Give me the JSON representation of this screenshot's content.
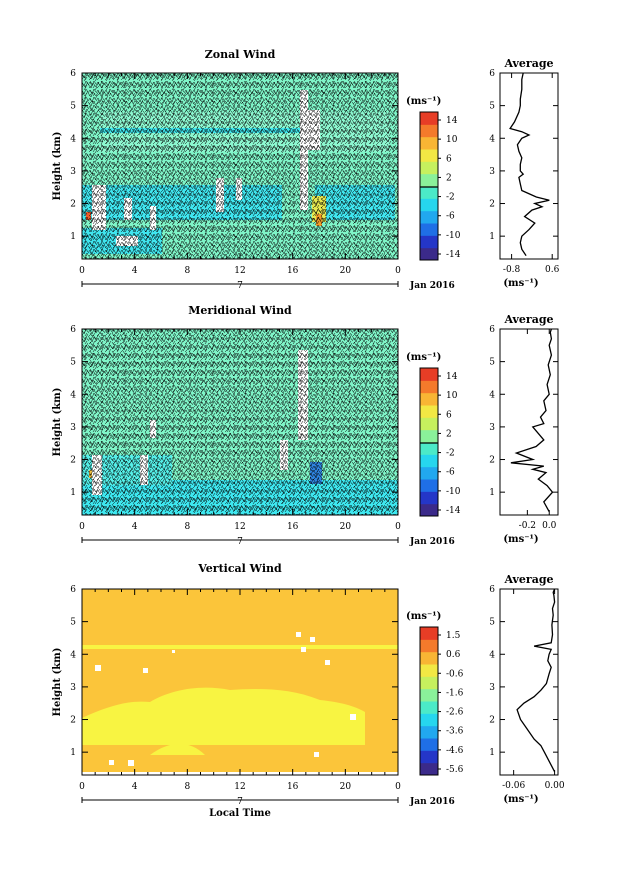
{
  "chart_data": [
    {
      "type": "heatmap",
      "title": "Zonal Wind",
      "ylabel": "Height (km)",
      "xlabel": "",
      "xticks": [
        "0",
        "4",
        "8",
        "12",
        "16",
        "20",
        "0"
      ],
      "yticks": [
        "1",
        "2",
        "3",
        "4",
        "5",
        "6"
      ],
      "xlim": [
        0,
        24
      ],
      "ylim": [
        0.3,
        6
      ],
      "date_marker": "7",
      "date_label": "Jan 2016",
      "colorbar": {
        "unit": "(ms⁻¹)",
        "ticks": [
          "14",
          "10",
          "6",
          "2",
          "-2",
          "-6",
          "-10",
          "-14"
        ],
        "range": [
          -16,
          16
        ]
      },
      "profile": {
        "title": "Average",
        "xlabel": "(ms⁻¹)",
        "xticks": [
          "-0.8",
          "0.6"
        ],
        "xlim": [
          -1.2,
          0.8
        ],
        "yticks": [
          "1",
          "2",
          "3",
          "4",
          "5",
          "6"
        ],
        "ylim": [
          0.3,
          6
        ],
        "x": [
          -0.3,
          -0.45,
          -0.5,
          -0.45,
          -0.2,
          0.0,
          -0.35,
          -0.1,
          0.25,
          0.0,
          0.5,
          0.05,
          -0.45,
          -0.5,
          -0.55,
          -0.4,
          -0.5,
          -0.5,
          -0.45,
          -0.55,
          -0.6,
          -0.45,
          -0.2,
          -0.45,
          -0.85,
          -0.7,
          -0.55,
          -0.5,
          -0.5,
          -0.45,
          -0.45,
          -0.4
        ],
        "y": [
          0.4,
          0.6,
          0.8,
          1.0,
          1.2,
          1.4,
          1.6,
          1.8,
          1.9,
          2.0,
          2.1,
          2.2,
          2.4,
          2.6,
          2.8,
          2.9,
          3.0,
          3.2,
          3.4,
          3.6,
          3.8,
          4.0,
          4.1,
          4.2,
          4.3,
          4.5,
          4.8,
          5.0,
          5.2,
          5.5,
          5.8,
          6.0
        ]
      }
    },
    {
      "type": "heatmap",
      "title": "Meridional Wind",
      "ylabel": "Height (km)",
      "xlabel": "",
      "xticks": [
        "0",
        "4",
        "8",
        "12",
        "16",
        "20",
        "0"
      ],
      "yticks": [
        "1",
        "2",
        "3",
        "4",
        "5",
        "6"
      ],
      "xlim": [
        0,
        24
      ],
      "ylim": [
        0.3,
        6
      ],
      "date_marker": "7",
      "date_label": "Jan 2016",
      "colorbar": {
        "unit": "(ms⁻¹)",
        "ticks": [
          "14",
          "10",
          "6",
          "2",
          "-2",
          "-6",
          "-10",
          "-14"
        ],
        "range": [
          -16,
          16
        ]
      },
      "profile": {
        "title": "Average",
        "xlabel": "(ms⁻¹)",
        "xticks": [
          "-0.2",
          "0.0"
        ],
        "xlim": [
          -0.45,
          0.08
        ],
        "yticks": [
          "1",
          "2",
          "3",
          "4",
          "5",
          "6"
        ],
        "ylim": [
          0.3,
          6
        ],
        "x": [
          0.0,
          -0.05,
          0.03,
          -0.02,
          -0.1,
          -0.03,
          -0.15,
          -0.05,
          -0.35,
          -0.15,
          -0.3,
          -0.12,
          -0.05,
          -0.1,
          -0.15,
          -0.05,
          -0.08,
          -0.03,
          -0.05,
          0.0,
          -0.02,
          0.01,
          -0.01,
          0.02,
          0.0,
          0.02,
          0.01,
          0.02
        ],
        "y": [
          0.4,
          0.7,
          1.0,
          1.2,
          1.4,
          1.6,
          1.7,
          1.8,
          1.9,
          2.0,
          2.2,
          2.4,
          2.6,
          2.8,
          3.0,
          3.1,
          3.3,
          3.5,
          3.8,
          4.0,
          4.3,
          4.6,
          4.9,
          5.2,
          5.5,
          5.7,
          5.9,
          6.0
        ]
      }
    },
    {
      "type": "heatmap",
      "title": "Vertical Wind",
      "ylabel": "Height (km)",
      "xlabel": "Local Time",
      "xticks": [
        "0",
        "4",
        "8",
        "12",
        "16",
        "20",
        "0"
      ],
      "yticks": [
        "1",
        "2",
        "3",
        "4",
        "5",
        "6"
      ],
      "xlim": [
        0,
        24
      ],
      "ylim": [
        0.3,
        6
      ],
      "date_marker": "7",
      "date_label": "Jan 2016",
      "colorbar": {
        "unit": "(ms⁻¹)",
        "ticks": [
          "1.5",
          "0.6",
          "-0.6",
          "-1.6",
          "-2.6",
          "-3.6",
          "-4.6",
          "-5.6"
        ],
        "range": [
          -6,
          2
        ]
      },
      "profile": {
        "title": "Average",
        "xlabel": "(ms⁻¹)",
        "xticks": [
          "-0.06",
          "0.00"
        ],
        "xlim": [
          -0.08,
          0.005
        ],
        "yticks": [
          "1",
          "2",
          "3",
          "4",
          "5",
          "6"
        ],
        "ylim": [
          0.3,
          6
        ],
        "x": [
          0.0,
          -0.005,
          -0.01,
          -0.015,
          -0.02,
          -0.03,
          -0.04,
          -0.05,
          -0.055,
          -0.045,
          -0.03,
          -0.02,
          -0.012,
          -0.008,
          -0.005,
          -0.01,
          -0.008,
          -0.005,
          -0.03,
          -0.005,
          -0.003,
          -0.004,
          -0.002,
          -0.003,
          0.0,
          -0.001,
          -0.002,
          0.0
        ],
        "y": [
          0.4,
          0.6,
          0.8,
          1.0,
          1.2,
          1.4,
          1.7,
          2.0,
          2.3,
          2.5,
          2.7,
          2.9,
          3.1,
          3.4,
          3.6,
          3.8,
          4.0,
          4.15,
          4.25,
          4.35,
          4.6,
          4.9,
          5.2,
          5.4,
          5.6,
          5.8,
          5.9,
          6.0
        ]
      }
    }
  ]
}
